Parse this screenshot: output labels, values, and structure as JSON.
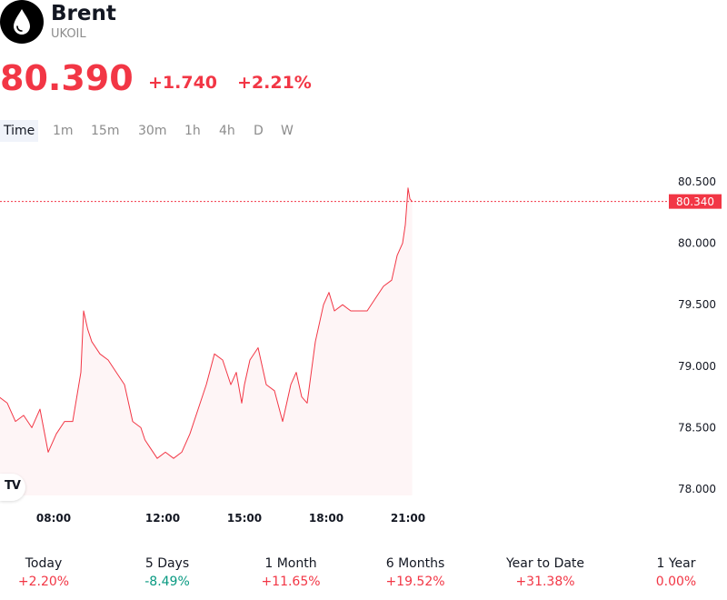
{
  "instrument": {
    "name": "Brent",
    "ticker": "UKOIL",
    "logo_icon": "oil-drop-icon"
  },
  "quote": {
    "price": "80.390",
    "change": "+1.740",
    "change_pct": "+2.21%",
    "color": "#f23645"
  },
  "tabs": [
    {
      "label": "Time",
      "active": true
    },
    {
      "label": "1m",
      "active": false
    },
    {
      "label": "15m",
      "active": false
    },
    {
      "label": "30m",
      "active": false
    },
    {
      "label": "1h",
      "active": false
    },
    {
      "label": "4h",
      "active": false
    },
    {
      "label": "D",
      "active": false
    },
    {
      "label": "W",
      "active": false
    }
  ],
  "chart_data": {
    "type": "area",
    "x_ticks": [
      "08:00",
      "12:00",
      "15:00",
      "18:00",
      "21:00"
    ],
    "y_ticks": [
      "78.000",
      "78.500",
      "79.000",
      "79.500",
      "80.000",
      "80.500"
    ],
    "ylim": [
      77.95,
      80.55
    ],
    "current_price_label": "80.340",
    "current_price": 80.34,
    "line_color": "#f23645",
    "x_hours": [
      6.0,
      6.3,
      6.6,
      6.9,
      7.2,
      7.5,
      7.8,
      8.1,
      8.4,
      8.7,
      9.0,
      9.1,
      9.25,
      9.4,
      9.7,
      10.0,
      10.3,
      10.6,
      10.9,
      11.2,
      11.35,
      11.5,
      11.8,
      12.1,
      12.4,
      12.7,
      13.0,
      13.3,
      13.6,
      13.9,
      14.2,
      14.5,
      14.7,
      14.9,
      15.0,
      15.2,
      15.5,
      15.8,
      16.1,
      16.4,
      16.7,
      16.9,
      17.1,
      17.3,
      17.6,
      17.9,
      18.1,
      18.3,
      18.6,
      18.9,
      19.2,
      19.5,
      19.8,
      20.1,
      20.4,
      20.6,
      20.8,
      20.9,
      21.0,
      21.07,
      21.15
    ],
    "values": [
      78.75,
      78.7,
      78.55,
      78.6,
      78.5,
      78.65,
      78.3,
      78.45,
      78.55,
      78.55,
      78.95,
      79.45,
      79.3,
      79.2,
      79.1,
      79.05,
      78.95,
      78.85,
      78.55,
      78.5,
      78.4,
      78.35,
      78.25,
      78.3,
      78.25,
      78.3,
      78.45,
      78.65,
      78.85,
      79.1,
      79.05,
      78.85,
      78.95,
      78.7,
      78.85,
      79.05,
      79.15,
      78.85,
      78.8,
      78.55,
      78.85,
      78.95,
      78.75,
      78.7,
      79.2,
      79.5,
      79.6,
      79.45,
      79.5,
      79.45,
      79.45,
      79.45,
      79.55,
      79.65,
      79.7,
      79.9,
      80.0,
      80.15,
      80.45,
      80.36,
      80.34
    ],
    "grid": false,
    "legend": "none"
  },
  "performance": [
    {
      "label": "Today",
      "value": "+2.20%",
      "color": "#f23645"
    },
    {
      "label": "5 Days",
      "value": "-8.49%",
      "color": "#089981"
    },
    {
      "label": "1 Month",
      "value": "+11.65%",
      "color": "#f23645"
    },
    {
      "label": "6 Months",
      "value": "+19.52%",
      "color": "#f23645"
    },
    {
      "label": "Year to Date",
      "value": "+31.38%",
      "color": "#f23645"
    },
    {
      "label": "1 Year",
      "value": "0.00%",
      "color": "#f23645"
    }
  ]
}
